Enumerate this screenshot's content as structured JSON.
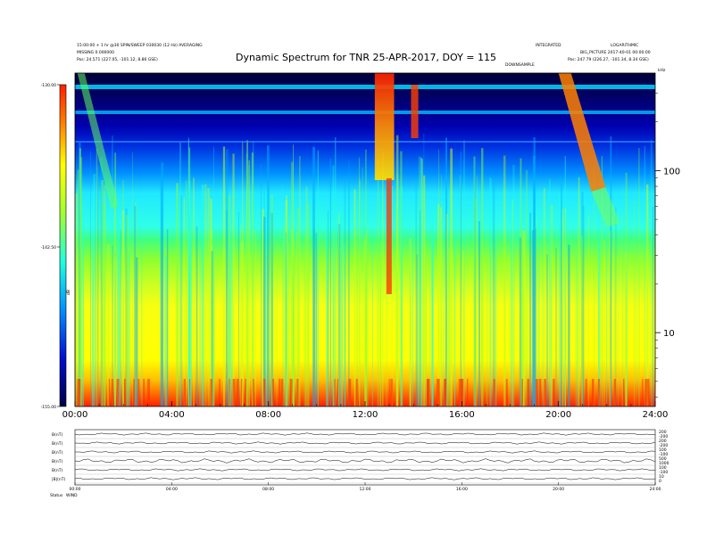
{
  "chart_data": {
    "type": "heatmap",
    "title": "Dynamic Spectrum for TNR 25-APR-2017, DOY = 115",
    "header_left": [
      "15:00:00 + 1 hr @30 SPIN/SWEEP 030030 (12 Hz) AVERAGING",
      "MISSING 0.000000",
      "Pos: 24.571 (227.05, -101.12, 8.86 GSE)"
    ],
    "header_mid_right": [
      "INTEGRATED",
      "DOWNSAMPLE"
    ],
    "header_right": [
      "LOGARITHMIC",
      "BIG_PICTURE 2017-40-01 00:00:00",
      "Pos: 247.79 (226.27, -101.34, 8.34 GSE)"
    ],
    "corner_label": "kHz",
    "x_tick_labels": [
      "00:00",
      "04:00",
      "08:00",
      "12:00",
      "16:00",
      "20:00",
      "24:00"
    ],
    "xlim": [
      "00:00",
      "24:00"
    ],
    "y_scale": "log",
    "y_tick_labels": [
      "100",
      "10"
    ],
    "y_tick_values": [
      100,
      10
    ],
    "colorbar": {
      "tick_labels": [
        "-130.00",
        "-142.50",
        "-155.00"
      ],
      "range": [
        -155.0,
        -130.0
      ],
      "label": "dB"
    },
    "colorscale": [
      "#00003a",
      "#0000c8",
      "#0050ff",
      "#00c8ff",
      "#30ffd0",
      "#a0ff40",
      "#ffff00",
      "#ffa000",
      "#ff2000"
    ],
    "features": [
      {
        "name": "radio burst",
        "start_h": 12.4,
        "end_h": 13.2
      },
      {
        "name": "radio burst",
        "start_h": 13.9,
        "end_h": 14.2
      },
      {
        "name": "radio burst",
        "start_h": 20.0,
        "end_h": 21.8
      },
      {
        "name": "radio burst",
        "start_h": 0.1,
        "end_h": 1.5
      }
    ],
    "bottom_panel": {
      "row_labels": [
        "B(nT)",
        "B(nT)",
        "B(nT)",
        "B(nT)",
        "B(nT)",
        "|B|(nT)"
      ],
      "right_labels": [
        "200",
        "-200",
        "200",
        "-200",
        "100",
        "-100",
        "500",
        "1000",
        "100",
        "-100",
        "10",
        "0"
      ],
      "x_tick_labels": [
        "00:00",
        "04:00",
        "08:00",
        "12:00",
        "16:00",
        "20:00",
        "24:00"
      ],
      "footer_label": "Status",
      "footer_tag": "WIND"
    }
  }
}
